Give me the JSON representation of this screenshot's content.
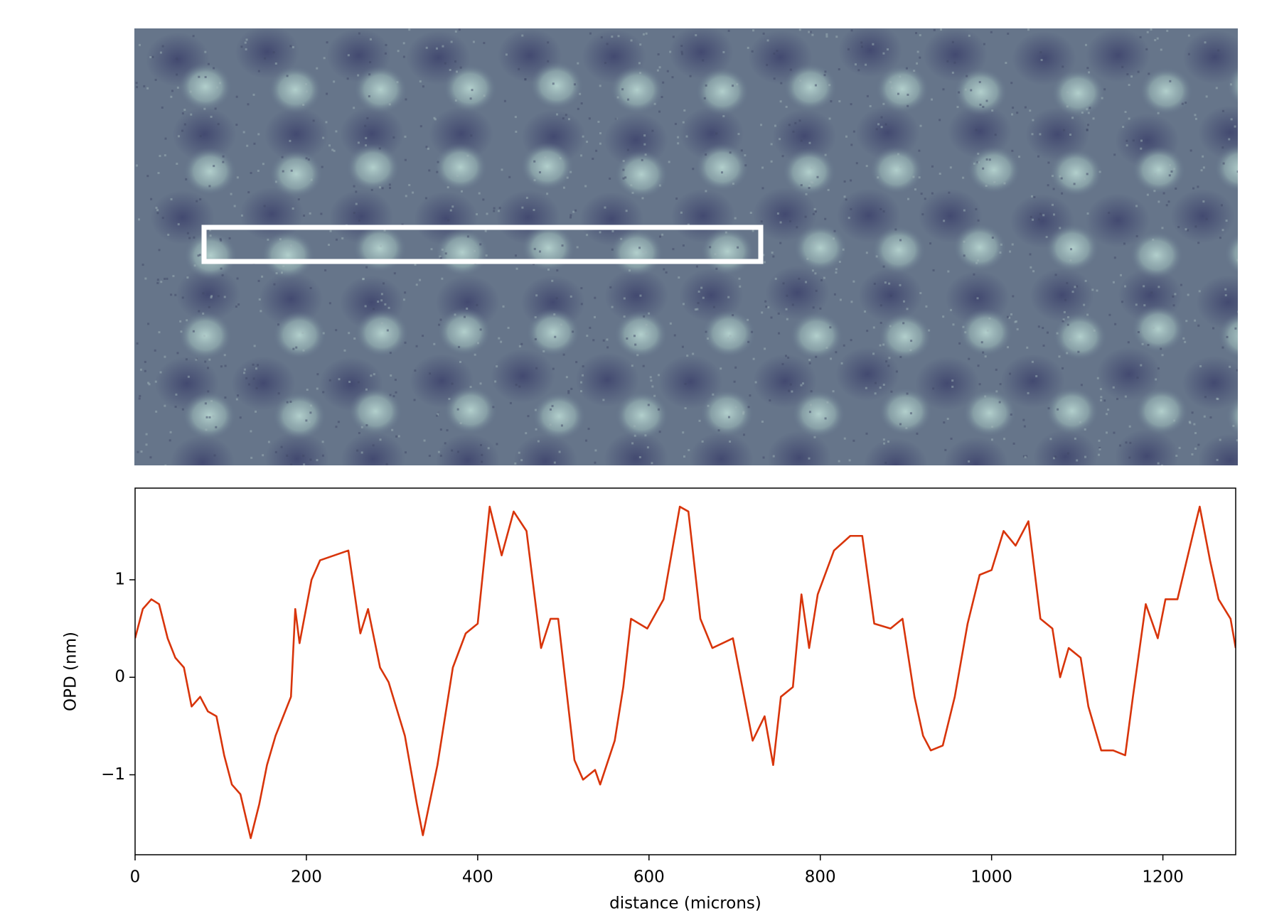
{
  "chart_data": {
    "type": "line",
    "xlabel": "distance (microns)",
    "ylabel": "OPD (nm)",
    "x": [
      0,
      9,
      19,
      28,
      38,
      47,
      57,
      66,
      76,
      85,
      95,
      104,
      113,
      123,
      135,
      145,
      154,
      164,
      173,
      182,
      187,
      192,
      206,
      216,
      249,
      263,
      272,
      286,
      296,
      315,
      329,
      336,
      353,
      371,
      386,
      400,
      414,
      428,
      442,
      457,
      474,
      485,
      494,
      513,
      523,
      537,
      543,
      560,
      570,
      579,
      598,
      617,
      636,
      646,
      660,
      674,
      698,
      721,
      735,
      745,
      754,
      768,
      778,
      787,
      797,
      816,
      835,
      849,
      863,
      882,
      896,
      910,
      920,
      929,
      943,
      957,
      972,
      986,
      1000,
      1014,
      1028,
      1043,
      1057,
      1071,
      1080,
      1090,
      1104,
      1113,
      1128,
      1142,
      1156,
      1165,
      1180,
      1194,
      1203,
      1217,
      1236,
      1243,
      1255,
      1265,
      1279,
      1285
    ],
    "series": [
      {
        "color": "#d8340a",
        "values": [
          0.4,
          0.7,
          0.8,
          0.75,
          0.4,
          0.2,
          0.1,
          -0.3,
          -0.2,
          -0.35,
          -0.4,
          -0.8,
          -1.1,
          -1.2,
          -1.65,
          -1.3,
          -0.9,
          -0.6,
          -0.4,
          -0.2,
          0.7,
          0.35,
          1.0,
          1.2,
          1.3,
          0.45,
          0.7,
          0.1,
          -0.05,
          -0.6,
          -1.3,
          -1.62,
          -0.9,
          0.1,
          0.45,
          0.55,
          1.75,
          1.25,
          1.7,
          1.5,
          0.3,
          0.6,
          0.6,
          -0.85,
          -1.05,
          -0.95,
          -1.1,
          -0.65,
          -0.1,
          0.6,
          0.5,
          0.8,
          1.75,
          1.7,
          0.6,
          0.3,
          0.4,
          -0.65,
          -0.4,
          -0.9,
          -0.2,
          -0.1,
          0.85,
          0.3,
          0.85,
          1.3,
          1.45,
          1.45,
          0.55,
          0.5,
          0.6,
          -0.2,
          -0.6,
          -0.75,
          -0.7,
          -0.2,
          0.55,
          1.05,
          1.1,
          1.5,
          1.35,
          1.6,
          0.6,
          0.5,
          0.0,
          0.3,
          0.2,
          -0.3,
          -0.75,
          -0.75,
          -0.8,
          -0.2,
          0.75,
          0.4,
          0.8,
          0.8,
          1.5,
          1.75,
          1.2,
          0.8,
          0.6,
          0.3
        ]
      }
    ],
    "xlim": [
      0,
      1285
    ],
    "ylim": [
      -1.82,
      1.94
    ],
    "xticks": [
      0,
      200,
      400,
      600,
      800,
      1000,
      1200
    ],
    "yticks": [
      {
        "value": -1,
        "label": "−1"
      },
      0,
      1
    ]
  }
}
